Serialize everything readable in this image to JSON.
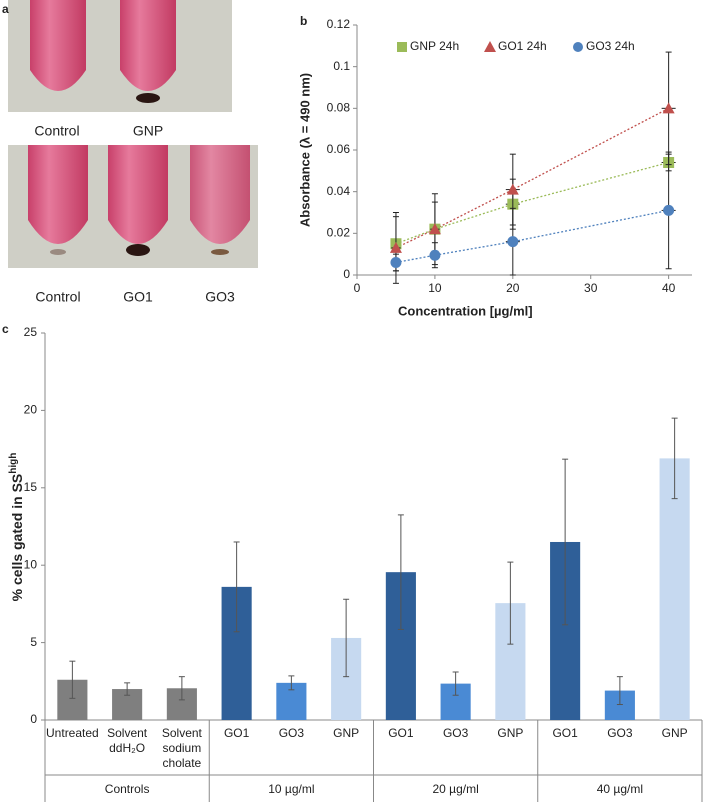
{
  "panel_a": {
    "label": "a",
    "top_captions": [
      "Control",
      "GNP"
    ],
    "bottom_captions": [
      "Control",
      "GO1",
      "GO3"
    ]
  },
  "chart_data": [
    {
      "type": "line",
      "panel_label": "b",
      "x_label": "Concentration  [µg/ml]",
      "y_label": "Absorbance (λ = 490 nm)",
      "x": [
        5,
        10,
        20,
        40
      ],
      "xlim": [
        0,
        43
      ],
      "xticks": [
        0,
        10,
        20,
        30,
        40
      ],
      "ylim": [
        0,
        0.12
      ],
      "yticks": [
        0,
        0.02,
        0.04,
        0.06,
        0.08,
        0.1,
        0.12
      ],
      "legend": "top",
      "series": [
        {
          "name": "GNP 24h",
          "color": "#9bbb59",
          "marker": "square",
          "values": [
            0.015,
            0.022,
            0.034,
            0.054
          ],
          "errors": [
            0.013,
            0.013,
            0.012,
            0.004
          ],
          "xerrors": [
            0.6,
            0.6,
            0.9,
            0.9
          ]
        },
        {
          "name": "GO1 24h",
          "color": "#c0504d",
          "marker": "triangle",
          "values": [
            0.013,
            0.022,
            0.041,
            0.08
          ],
          "errors": [
            0.017,
            0.017,
            0.017,
            0.027
          ],
          "xerrors": [
            0.6,
            0.6,
            0.9,
            0.9
          ]
        },
        {
          "name": "GO3 24h",
          "color": "#4f81bd",
          "marker": "circle",
          "values": [
            0.006,
            0.0095,
            0.016,
            0.031
          ],
          "errors": [
            0.004,
            0.006,
            0.016,
            0.028
          ],
          "xerrors": [
            0.6,
            0.6,
            0.9,
            0.9
          ]
        }
      ]
    },
    {
      "type": "bar",
      "panel_label": "c",
      "y_label": "% cells gated in SS",
      "y_label_sup": "high",
      "categories": [
        [
          "Untreated"
        ],
        [
          "Solvent",
          "ddH₂O"
        ],
        [
          "Solvent",
          "sodium",
          "cholate"
        ],
        [
          "GO1"
        ],
        [
          "GO3"
        ],
        [
          "GNP"
        ],
        [
          "GO1"
        ],
        [
          "GO3"
        ],
        [
          "GNP"
        ],
        [
          "GO1"
        ],
        [
          "GO3"
        ],
        [
          "GNP"
        ]
      ],
      "groups": [
        {
          "label": "Controls",
          "size": 3
        },
        {
          "label": "10 µg/ml",
          "size": 3
        },
        {
          "label": "20 µg/ml",
          "size": 3
        },
        {
          "label": "40 µg/ml",
          "size": 3
        }
      ],
      "values": [
        2.6,
        2.0,
        2.05,
        8.6,
        2.4,
        5.3,
        9.55,
        2.35,
        7.55,
        11.5,
        1.9,
        16.9
      ],
      "errors": [
        1.2,
        0.4,
        0.75,
        2.9,
        0.45,
        2.5,
        3.7,
        0.75,
        2.65,
        5.35,
        0.9,
        2.6
      ],
      "colors": [
        "#7f7f7f",
        "#7f7f7f",
        "#7f7f7f",
        "#2f5f98",
        "#4a8ad4",
        "#c6d9f0",
        "#2f5f98",
        "#4a8ad4",
        "#c6d9f0",
        "#2f5f98",
        "#4a8ad4",
        "#c6d9f0"
      ],
      "ylim": [
        0,
        25
      ],
      "yticks": [
        0,
        5,
        10,
        15,
        20,
        25
      ]
    }
  ]
}
